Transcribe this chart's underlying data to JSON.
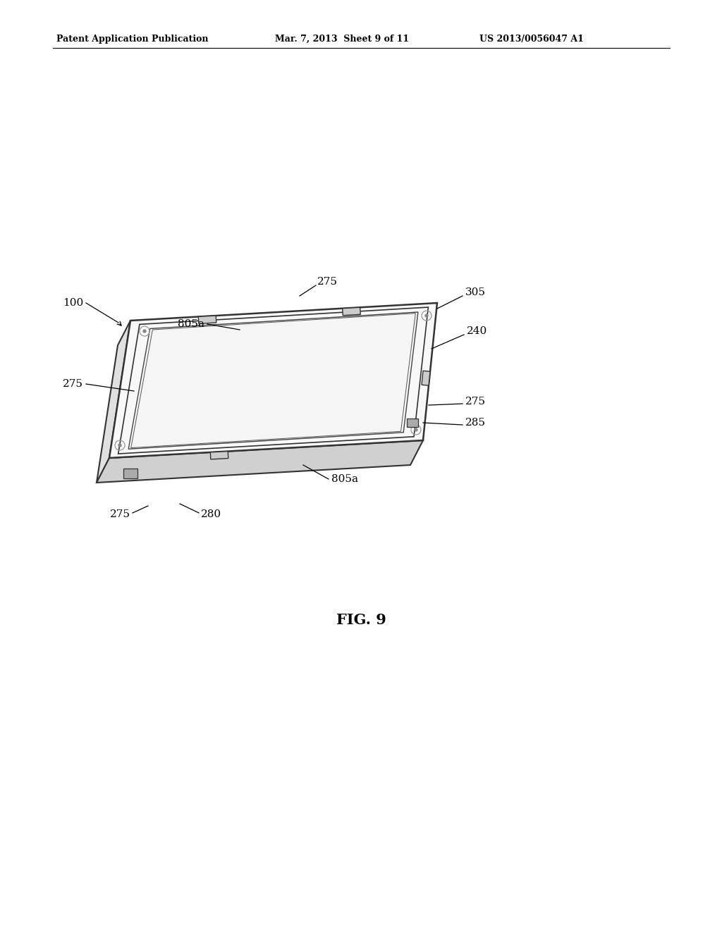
{
  "bg_color": "#ffffff",
  "header_left": "Patent Application Publication",
  "header_mid": "Mar. 7, 2013  Sheet 9 of 11",
  "header_right": "US 2013/0056047 A1",
  "fig_label": "FIG. 9",
  "title_fontsize": 9,
  "fig_fontsize": 15
}
